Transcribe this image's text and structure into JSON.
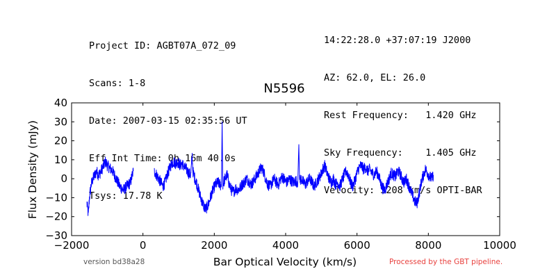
{
  "header": {
    "left": [
      "Project ID: AGBT07A_072_09",
      "Scans: 1-8",
      "Date: 2007-03-15 02:35:56 UT",
      "Eff Int Time: 0h 16m 40.0s",
      "Tsys: 17.78 K"
    ],
    "right": [
      "14:22:28.0 +37:07:19 J2000",
      "AZ: 62.0, EL: 26.0",
      "Rest Frequency:   1.420 GHz",
      "Sky Frequency:    1.405 GHz",
      "Velocity: 3208 km/s OPTI-BAR"
    ]
  },
  "footer": {
    "version": "version bd38a28",
    "pipeline": "Processed by the GBT pipeline."
  },
  "colors": {
    "series": "#0000ff",
    "pipeline_text": "#e8413e"
  },
  "chart_data": {
    "type": "line",
    "title": "N5596",
    "xlabel": "Bar Optical Velocity (km/s)",
    "ylabel": "Flux Density (mJy)",
    "xlim": [
      -2000,
      10000
    ],
    "ylim": [
      -30,
      40
    ],
    "xticks": [
      -2000,
      0,
      2000,
      4000,
      6000,
      8000,
      10000
    ],
    "yticks": [
      -30,
      -20,
      -10,
      0,
      10,
      20,
      30,
      40
    ],
    "grid": false,
    "legend": "none",
    "series": [
      {
        "segments": [
          [
            [
              -1570,
              -13
            ],
            [
              -1530,
              -19
            ],
            [
              -1500,
              -10
            ],
            [
              -1450,
              -3
            ],
            [
              -1400,
              0
            ],
            [
              -1350,
              2
            ],
            [
              -1300,
              4
            ],
            [
              -1250,
              2
            ],
            [
              -1200,
              3
            ],
            [
              -1150,
              5
            ],
            [
              -1100,
              7
            ],
            [
              -1050,
              9
            ],
            [
              -1000,
              7
            ],
            [
              -950,
              6
            ],
            [
              -900,
              5
            ],
            [
              -850,
              4
            ],
            [
              -800,
              2
            ],
            [
              -750,
              0
            ],
            [
              -700,
              -2
            ],
            [
              -650,
              -4
            ],
            [
              -600,
              -5
            ],
            [
              -550,
              -6
            ],
            [
              -500,
              -5
            ],
            [
              -450,
              -4
            ],
            [
              -400,
              -3
            ],
            [
              -350,
              -2
            ],
            [
              -300,
              2
            ],
            [
              -270,
              4
            ]
          ],
          [
            [
              320,
              4
            ],
            [
              380,
              2
            ],
            [
              440,
              0
            ],
            [
              500,
              -2
            ],
            [
              560,
              -4
            ],
            [
              620,
              -2
            ],
            [
              680,
              2
            ],
            [
              740,
              5
            ],
            [
              800,
              8
            ],
            [
              860,
              9
            ],
            [
              920,
              8
            ],
            [
              980,
              9
            ],
            [
              1040,
              7
            ],
            [
              1100,
              8
            ],
            [
              1160,
              6
            ],
            [
              1220,
              5
            ],
            [
              1280,
              3
            ],
            [
              1340,
              2
            ],
            [
              1380,
              12
            ],
            [
              1400,
              4
            ],
            [
              1440,
              1
            ],
            [
              1500,
              -2
            ],
            [
              1560,
              -6
            ],
            [
              1620,
              -10
            ],
            [
              1680,
              -13
            ],
            [
              1740,
              -16
            ],
            [
              1800,
              -15
            ],
            [
              1860,
              -12
            ],
            [
              1920,
              -8
            ],
            [
              1980,
              -5
            ],
            [
              2040,
              -3
            ],
            [
              2100,
              -2
            ],
            [
              2160,
              -3
            ],
            [
              2200,
              -4
            ],
            [
              2220,
              30
            ],
            [
              2240,
              -3
            ],
            [
              2300,
              0
            ],
            [
              2360,
              2
            ],
            [
              2420,
              -3
            ],
            [
              2480,
              -6
            ],
            [
              2540,
              -7
            ],
            [
              2600,
              -5
            ],
            [
              2660,
              -6
            ],
            [
              2720,
              -5
            ],
            [
              2780,
              -3
            ],
            [
              2840,
              -2
            ],
            [
              2900,
              0
            ],
            [
              2960,
              -1
            ],
            [
              3020,
              -3
            ],
            [
              3080,
              -2
            ],
            [
              3140,
              0
            ],
            [
              3200,
              2
            ],
            [
              3260,
              4
            ],
            [
              3320,
              6
            ],
            [
              3380,
              4
            ],
            [
              3440,
              0
            ],
            [
              3500,
              -3
            ],
            [
              3560,
              -4
            ],
            [
              3620,
              -2
            ],
            [
              3680,
              0
            ],
            [
              3740,
              -2
            ],
            [
              3800,
              -3
            ],
            [
              3860,
              0
            ],
            [
              3920,
              1
            ],
            [
              3980,
              -1
            ],
            [
              4040,
              -2
            ],
            [
              4100,
              0
            ],
            [
              4160,
              -1
            ],
            [
              4220,
              -2
            ],
            [
              4280,
              -1
            ],
            [
              4340,
              -2
            ],
            [
              4370,
              18
            ],
            [
              4390,
              -1
            ],
            [
              4440,
              0
            ],
            [
              4500,
              -2
            ],
            [
              4560,
              -3
            ],
            [
              4620,
              -1
            ],
            [
              4680,
              0
            ],
            [
              4740,
              -2
            ],
            [
              4800,
              -4
            ],
            [
              4860,
              -2
            ],
            [
              4920,
              0
            ],
            [
              4980,
              2
            ],
            [
              5040,
              5
            ],
            [
              5100,
              7
            ],
            [
              5160,
              3
            ],
            [
              5220,
              0
            ],
            [
              5280,
              -2
            ],
            [
              5340,
              0
            ],
            [
              5400,
              -3
            ],
            [
              5460,
              -2
            ],
            [
              5520,
              -4
            ],
            [
              5580,
              -1
            ],
            [
              5640,
              2
            ],
            [
              5700,
              4
            ],
            [
              5760,
              2
            ],
            [
              5820,
              -2
            ],
            [
              5880,
              -4
            ],
            [
              5940,
              -1
            ],
            [
              6000,
              3
            ],
            [
              6060,
              6
            ],
            [
              6120,
              7
            ],
            [
              6180,
              5
            ],
            [
              6240,
              6
            ],
            [
              6300,
              4
            ],
            [
              6360,
              5
            ],
            [
              6420,
              3
            ],
            [
              6480,
              2
            ],
            [
              6540,
              4
            ],
            [
              6600,
              2
            ],
            [
              6660,
              -2
            ],
            [
              6720,
              -5
            ],
            [
              6780,
              -6
            ],
            [
              6840,
              -3
            ],
            [
              6900,
              0
            ],
            [
              6960,
              3
            ],
            [
              7020,
              2
            ],
            [
              7080,
              1
            ],
            [
              7140,
              4
            ],
            [
              7200,
              3
            ],
            [
              7260,
              0
            ],
            [
              7320,
              -2
            ],
            [
              7380,
              0
            ],
            [
              7440,
              -3
            ],
            [
              7500,
              -6
            ],
            [
              7560,
              -9
            ],
            [
              7620,
              -12
            ],
            [
              7680,
              -13
            ],
            [
              7740,
              -8
            ],
            [
              7800,
              -2
            ],
            [
              7860,
              2
            ],
            [
              7920,
              5
            ],
            [
              7980,
              3
            ],
            [
              8040,
              1
            ],
            [
              8100,
              0
            ],
            [
              8140,
              2
            ]
          ]
        ]
      }
    ]
  }
}
